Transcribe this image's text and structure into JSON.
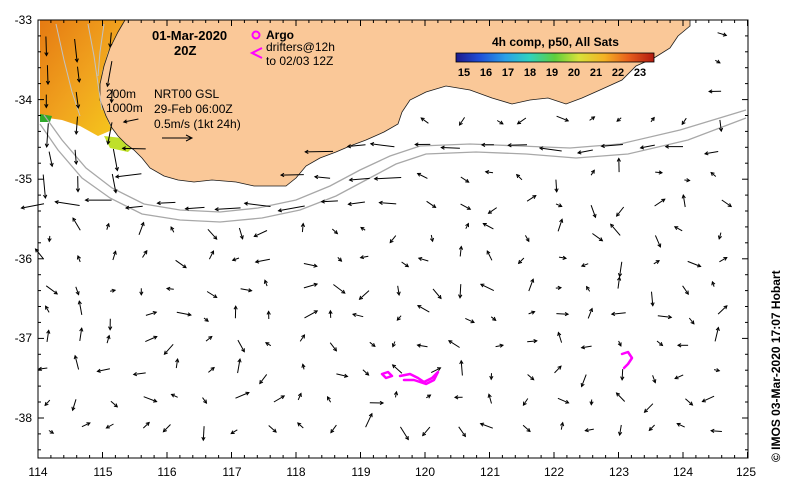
{
  "map": {
    "date": "01-Mar-2020",
    "time": "20Z",
    "legend_argo": "Argo",
    "legend_drifters_line1": "drifters@12h",
    "legend_drifters_line2": "to 02/03 12Z",
    "contour_200": "200m",
    "contour_1000": "1000m",
    "product": "NRT00 GSL",
    "product_time": "29-Feb 06:00Z",
    "scale": "0.5m/s (1kt 24h)",
    "colorbar_title": "4h comp, p50, All Sats",
    "colorbar_ticks": [
      "15",
      "16",
      "17",
      "18",
      "19",
      "20",
      "21",
      "22",
      "23"
    ],
    "credit": "© IMOS 03-Mar-2020 17:07 Hobart",
    "x_ticks": [
      "114",
      "115",
      "116",
      "117",
      "118",
      "119",
      "120",
      "121",
      "122",
      "123",
      "124",
      "125"
    ],
    "y_ticks": [
      "-33",
      "-34",
      "-35",
      "-36",
      "-37",
      "-38"
    ],
    "colors": {
      "land": "#fac898",
      "argo": "#ff00ff",
      "drifter": "#ff00ff",
      "contour": "#a8a8a8",
      "arrow": "#000000"
    }
  }
}
